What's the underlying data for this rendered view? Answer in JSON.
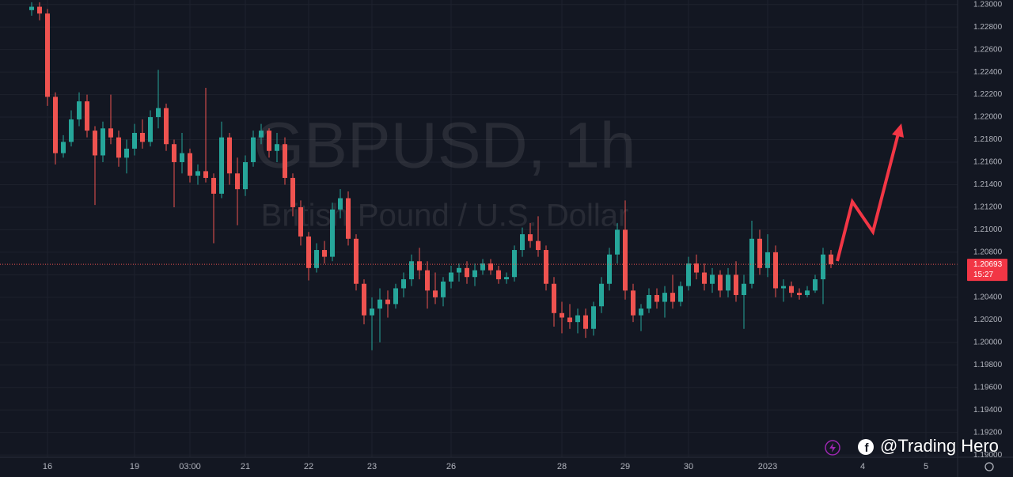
{
  "chart_data": {
    "type": "candlestick",
    "title": "GBPUSD, 1h",
    "subtitle": "British Pound / U.S. Dollar",
    "watermark": "@Trading Hero",
    "up_color": "#26a69a",
    "down_color": "#ef5350",
    "last_price": 1.20693,
    "countdown": "15:27",
    "grid": true,
    "ylim": [
      1.1898,
      1.2304
    ],
    "yticks": [
      {
        "value": 1.23,
        "label": "1.23000"
      },
      {
        "value": 1.228,
        "label": "1.22800"
      },
      {
        "value": 1.226,
        "label": "1.22600"
      },
      {
        "value": 1.224,
        "label": "1.22400"
      },
      {
        "value": 1.222,
        "label": "1.22200"
      },
      {
        "value": 1.22,
        "label": "1.22000"
      },
      {
        "value": 1.218,
        "label": "1.21800"
      },
      {
        "value": 1.216,
        "label": "1.21600"
      },
      {
        "value": 1.214,
        "label": "1.21400"
      },
      {
        "value": 1.212,
        "label": "1.21200"
      },
      {
        "value": 1.21,
        "label": "1.21000"
      },
      {
        "value": 1.208,
        "label": "1.20800"
      },
      {
        "value": 1.206,
        "label": "1.20600"
      },
      {
        "value": 1.204,
        "label": "1.20400"
      },
      {
        "value": 1.202,
        "label": "1.20200"
      },
      {
        "value": 1.2,
        "label": "1.20000"
      },
      {
        "value": 1.198,
        "label": "1.19800"
      },
      {
        "value": 1.196,
        "label": "1.19600"
      },
      {
        "value": 1.194,
        "label": "1.19400"
      },
      {
        "value": 1.192,
        "label": "1.19200"
      },
      {
        "value": 1.19,
        "label": "1.19000"
      }
    ],
    "categories": [
      null,
      null,
      "16",
      null,
      null,
      null,
      null,
      null,
      null,
      null,
      null,
      null,
      null,
      "19",
      null,
      null,
      null,
      null,
      null,
      null,
      "03:00",
      null,
      null,
      null,
      null,
      null,
      null,
      "21",
      null,
      null,
      null,
      null,
      null,
      null,
      null,
      "22",
      null,
      null,
      null,
      null,
      null,
      null,
      null,
      "23",
      null,
      null,
      null,
      null,
      null,
      null,
      null,
      null,
      null,
      "26",
      null,
      null,
      null,
      null,
      null,
      null,
      null,
      null,
      null,
      null,
      null,
      null,
      null,
      "28",
      null,
      null,
      null,
      null,
      null,
      null,
      null,
      "29",
      null,
      null,
      null,
      null,
      null,
      null,
      null,
      "30",
      null,
      null,
      null,
      null,
      null,
      null,
      null,
      null,
      null,
      "2023",
      null,
      null,
      null,
      null,
      null,
      null,
      null,
      null,
      null,
      null,
      null,
      "4",
      null,
      null,
      null,
      null,
      null,
      null,
      null,
      "5",
      null,
      null,
      null,
      null
    ],
    "open": [
      1.2295,
      1.2298,
      1.2292,
      1.2218,
      1.2168,
      1.2178,
      1.2198,
      1.2214,
      1.2188,
      1.2166,
      1.219,
      1.2182,
      1.2164,
      1.2172,
      1.2186,
      1.2178,
      1.22,
      1.2208,
      1.2176,
      1.216,
      1.2168,
      1.2148,
      1.2152,
      1.2146,
      1.2132,
      1.2182,
      1.215,
      1.2136,
      1.216,
      1.2182,
      1.2188,
      1.217,
      1.2176,
      1.2146,
      1.212,
      1.2094,
      1.2066,
      1.2082,
      1.2076,
      1.2118,
      1.2128,
      1.2092,
      1.2052,
      1.2024,
      1.203,
      1.2038,
      1.2034,
      1.2048,
      1.2056,
      1.2072,
      1.2064,
      1.2046,
      1.204,
      1.2054,
      1.2062,
      1.2066,
      1.2058,
      1.2064,
      1.207,
      1.2064,
      1.2056,
      1.2058,
      1.2082,
      1.2096,
      1.209,
      1.2082,
      1.2052,
      1.2026,
      1.2022,
      1.2018,
      1.2024,
      1.2012,
      1.2032,
      1.2052,
      1.2078,
      1.21,
      1.2046,
      1.2024,
      1.203,
      1.2042,
      1.2036,
      1.2044,
      1.2036,
      1.205,
      1.207,
      1.2062,
      1.2052,
      1.206,
      1.2046,
      1.206,
      1.2042,
      1.2052,
      1.2092,
      1.2066,
      1.208,
      1.2048,
      1.205,
      1.2044,
      1.2042,
      1.2046,
      1.2056,
      1.2078,
      null,
      null,
      null,
      null,
      null,
      null,
      null,
      null,
      null,
      null,
      null,
      null,
      null,
      null,
      null,
      null
    ],
    "high": [
      1.2302,
      1.2302,
      1.2296,
      1.2222,
      1.2184,
      1.2206,
      1.2222,
      1.222,
      1.2192,
      1.2196,
      1.222,
      1.2188,
      1.218,
      1.2194,
      1.2198,
      1.2206,
      1.2242,
      1.2212,
      1.218,
      1.2186,
      1.2172,
      1.2158,
      1.2226,
      1.215,
      1.2196,
      1.2186,
      1.2164,
      1.2166,
      1.2188,
      1.2194,
      1.219,
      1.2186,
      1.2182,
      1.215,
      1.2126,
      1.2098,
      1.2088,
      1.209,
      1.2124,
      1.2136,
      1.2134,
      1.2096,
      1.2056,
      1.204,
      1.2048,
      1.2046,
      1.2052,
      1.2062,
      1.2078,
      1.2084,
      1.2072,
      1.2062,
      1.2058,
      1.2068,
      1.207,
      1.2072,
      1.207,
      1.2074,
      1.2074,
      1.2068,
      1.2062,
      1.2086,
      1.2102,
      1.2106,
      1.2112,
      1.2086,
      1.2058,
      1.2036,
      1.2034,
      1.203,
      1.203,
      1.2036,
      1.2058,
      1.2084,
      1.2106,
      1.2126,
      1.2052,
      1.2034,
      1.2048,
      1.2048,
      1.205,
      1.206,
      1.2054,
      1.2076,
      1.2078,
      1.207,
      1.2066,
      1.2064,
      1.2066,
      1.2072,
      1.206,
      1.2108,
      1.21,
      1.2096,
      1.2086,
      1.2056,
      1.2054,
      1.2048,
      1.205,
      1.206,
      1.2084,
      1.2082,
      null,
      null,
      null,
      null,
      null,
      null,
      null,
      null,
      null,
      null,
      null,
      null,
      null,
      null,
      null,
      null
    ],
    "low": [
      1.229,
      1.2286,
      1.221,
      1.2158,
      1.2164,
      1.2174,
      1.2192,
      1.2182,
      1.2122,
      1.216,
      1.2176,
      1.2156,
      1.215,
      1.2166,
      1.2172,
      1.2174,
      1.219,
      1.217,
      1.212,
      1.215,
      1.2142,
      1.214,
      1.2142,
      1.2088,
      1.2128,
      1.214,
      1.2104,
      1.213,
      1.2156,
      1.2176,
      1.2164,
      1.216,
      1.214,
      1.2112,
      1.2086,
      1.2055,
      1.2062,
      1.207,
      1.2072,
      1.211,
      1.2086,
      1.2046,
      1.2016,
      1.1993,
      1.2,
      1.2022,
      1.203,
      1.204,
      1.205,
      1.2056,
      1.203,
      1.2034,
      1.2032,
      1.2048,
      1.2054,
      1.2052,
      1.205,
      1.206,
      1.206,
      1.2052,
      1.2052,
      1.2054,
      1.2076,
      1.2084,
      1.2076,
      1.2046,
      1.2014,
      1.2008,
      1.2012,
      1.2008,
      1.2004,
      1.2006,
      1.2026,
      1.2046,
      1.207,
      1.2038,
      1.2018,
      1.201,
      1.2026,
      1.203,
      1.2022,
      1.203,
      1.2032,
      1.2046,
      1.2056,
      1.2046,
      1.2044,
      1.204,
      1.204,
      1.2036,
      1.2012,
      1.2048,
      1.206,
      1.2058,
      1.204,
      1.2036,
      1.204,
      1.2038,
      1.204,
      1.2044,
      1.2034,
      1.2066,
      null,
      null,
      null,
      null,
      null,
      null,
      null,
      null,
      null,
      null,
      null,
      null,
      null,
      null,
      null,
      null
    ],
    "close": [
      1.2298,
      1.2292,
      1.2218,
      1.2168,
      1.2178,
      1.2198,
      1.2214,
      1.2188,
      1.2166,
      1.219,
      1.2182,
      1.2164,
      1.2172,
      1.2186,
      1.2178,
      1.22,
      1.2208,
      1.2176,
      1.216,
      1.2168,
      1.2148,
      1.2152,
      1.2146,
      1.2132,
      1.2182,
      1.215,
      1.2136,
      1.216,
      1.2182,
      1.2188,
      1.217,
      1.2176,
      1.2146,
      1.212,
      1.2094,
      1.2066,
      1.2082,
      1.2076,
      1.2118,
      1.2128,
      1.2092,
      1.2052,
      1.2024,
      1.203,
      1.2038,
      1.2034,
      1.2048,
      1.2056,
      1.2072,
      1.2064,
      1.2046,
      1.204,
      1.2054,
      1.2062,
      1.2066,
      1.2058,
      1.2064,
      1.207,
      1.2064,
      1.2056,
      1.2058,
      1.2082,
      1.2096,
      1.209,
      1.2082,
      1.2052,
      1.2026,
      1.2022,
      1.2018,
      1.2024,
      1.2012,
      1.2032,
      1.2052,
      1.2078,
      1.21,
      1.2046,
      1.2024,
      1.203,
      1.2042,
      1.2036,
      1.2044,
      1.2036,
      1.205,
      1.207,
      1.2062,
      1.2052,
      1.206,
      1.2046,
      1.206,
      1.2042,
      1.2052,
      1.2092,
      1.2066,
      1.208,
      1.2048,
      1.205,
      1.2044,
      1.2042,
      1.2046,
      1.2056,
      1.2078,
      1.20693,
      null,
      null,
      null,
      null,
      null,
      null,
      null,
      null,
      null,
      null,
      null,
      null,
      null,
      null,
      null,
      null
    ]
  }
}
